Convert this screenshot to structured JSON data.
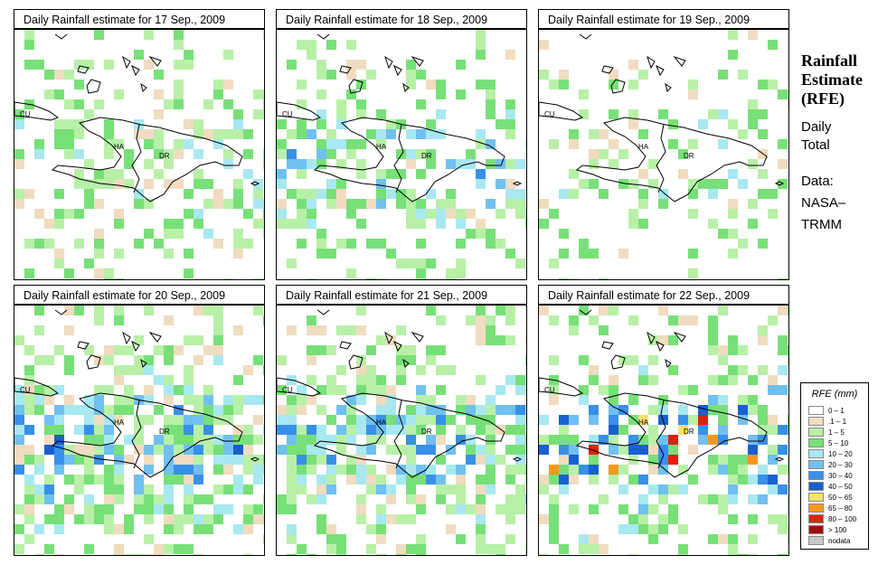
{
  "side": {
    "title_lines": [
      "Rainfall",
      "Estimate",
      "(RFE)"
    ],
    "daily": [
      "Daily",
      "Total"
    ],
    "data_label": [
      "Data:",
      "NASA–",
      "TRMM"
    ]
  },
  "legend": {
    "title": "RFE (mm)",
    "items": [
      {
        "label": "0 – 1",
        "color": "#ffffff"
      },
      {
        "label": ".1 – 1",
        "color": "#f0dcc0"
      },
      {
        "label": "1 – 5",
        "color": "#b8f0a8"
      },
      {
        "label": "5 – 10",
        "color": "#78e078"
      },
      {
        "label": "10 – 20",
        "color": "#a8e8f0"
      },
      {
        "label": "20 – 30",
        "color": "#70c0f0"
      },
      {
        "label": "30 – 40",
        "color": "#3890e8"
      },
      {
        "label": "40 – 50",
        "color": "#1860d0"
      },
      {
        "label": "50 – 65",
        "color": "#f8e070"
      },
      {
        "label": "65 – 80",
        "color": "#f89820"
      },
      {
        "label": "80 – 100",
        "color": "#e02010"
      },
      {
        "label": "> 100",
        "color": "#a01010"
      },
      {
        "label": "nodata",
        "color": "#c8c8c8"
      }
    ]
  },
  "map_labels": {
    "cuba": "CU",
    "haiti": "HA",
    "dr": "DR"
  },
  "panels": [
    {
      "title": "Daily Rainfall estimate for  17 Sep., 2009",
      "seed": 17,
      "density": 0.28,
      "intensity": 0.25
    },
    {
      "title": "Daily Rainfall estimate for  18 Sep., 2009",
      "seed": 18,
      "density": 0.34,
      "intensity": 0.35
    },
    {
      "title": "Daily Rainfall estimate for  19 Sep., 2009",
      "seed": 19,
      "density": 0.18,
      "intensity": 0.2
    },
    {
      "title": "Daily Rainfall estimate for  20 Sep., 2009",
      "seed": 20,
      "density": 0.5,
      "intensity": 0.45
    },
    {
      "title": "Daily Rainfall estimate for  21 Sep., 2009",
      "seed": 21,
      "density": 0.52,
      "intensity": 0.45
    },
    {
      "title": "Daily Rainfall estimate for  22 Sep., 2009",
      "seed": 22,
      "density": 0.42,
      "intensity": 0.65
    }
  ]
}
